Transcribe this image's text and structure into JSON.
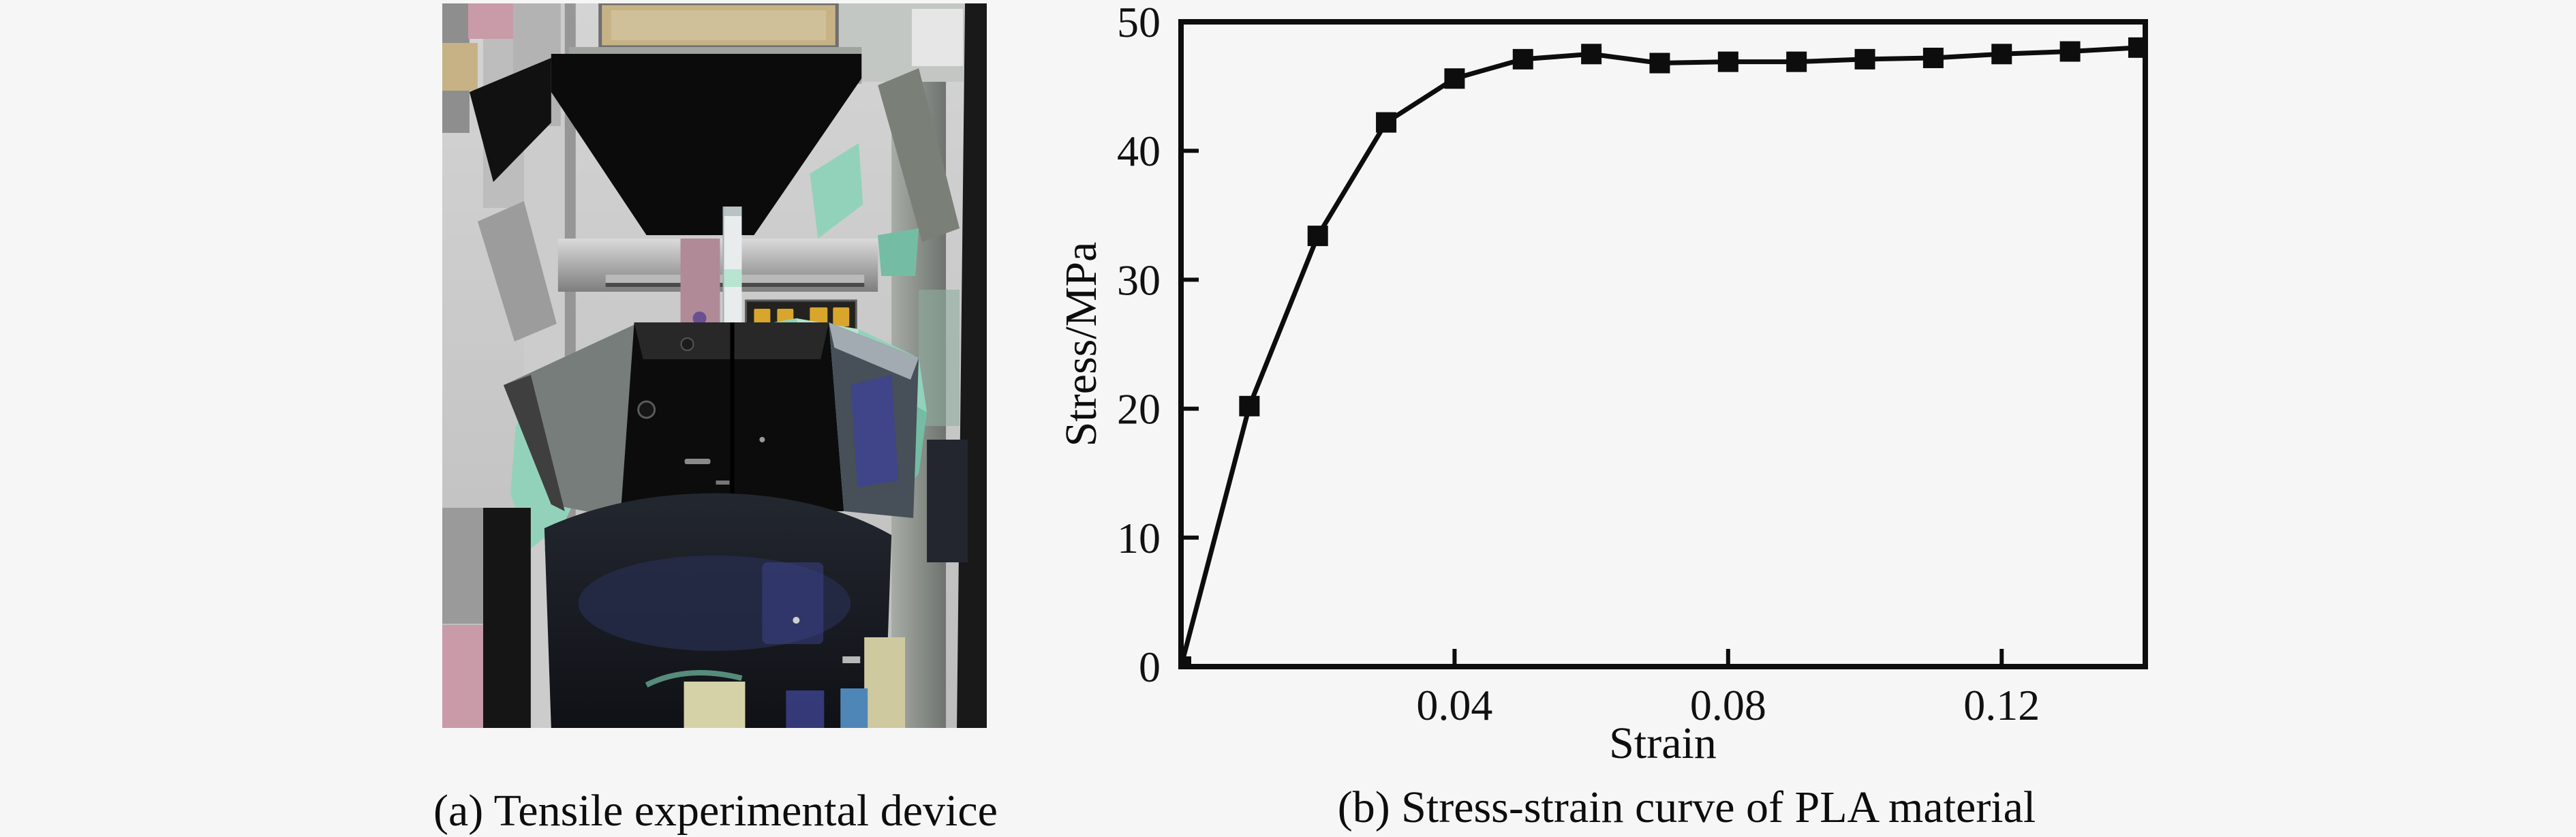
{
  "figure": {
    "background": "#f6f6f6",
    "panel_a": {
      "caption": "(a) Tensile experimental device",
      "photo_alt": "Tensile testing machine holding a light vertical specimen between black grips, draped with a teal cloth"
    },
    "panel_b": {
      "caption": "(b) Stress-strain curve of PLA material"
    }
  },
  "palette": {
    "teal": "#93d2ba",
    "tealLight": "#b9e4d1",
    "tealDark": "#74bda4",
    "pink": "#c99aa8",
    "pinkDark": "#b08a97",
    "indigo": "#3e4390",
    "blue": "#4f86b8",
    "tan": "#c6b285",
    "yellow": "#d8a62c",
    "ink": "#0d0d0d"
  },
  "chart_data": {
    "type": "line",
    "title": "",
    "xlabel": "Strain",
    "ylabel": "Stress/MPa",
    "series": [
      {
        "name": "PLA stress-strain",
        "x": [
          0,
          0.01,
          0.02,
          0.03,
          0.04,
          0.05,
          0.06,
          0.07,
          0.08,
          0.09,
          0.1,
          0.11,
          0.12,
          0.13,
          0.14
        ],
        "y": [
          0,
          20.2,
          33.4,
          42.2,
          45.6,
          47.1,
          47.5,
          46.8,
          46.9,
          46.9,
          47.1,
          47.2,
          47.5,
          47.7,
          48.0
        ]
      }
    ],
    "xlim": [
      0,
      0.141
    ],
    "ylim": [
      0,
      50
    ],
    "xticks": [
      0.04,
      0.08,
      0.12
    ],
    "xtick_labels": [
      "0.04",
      "0.08",
      "0.12"
    ],
    "yticks": [
      0,
      10,
      20,
      30,
      40,
      50
    ],
    "ytick_labels": [
      "0",
      "10",
      "20",
      "30",
      "40",
      "50"
    ],
    "grid": false,
    "legend": false,
    "marker": "filled-square",
    "marker_size": 30,
    "line_color": "#0d0d0d",
    "axis_color": "#0d0d0d"
  }
}
